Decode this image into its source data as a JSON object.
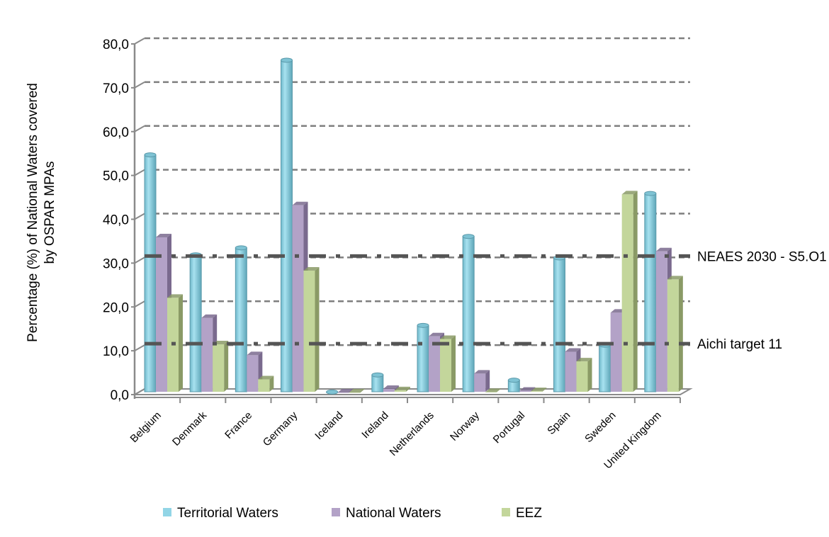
{
  "chart_data": {
    "type": "bar",
    "title": "",
    "ylabel": "Percentage (%) of National Waters covered by OSPAR MPAs",
    "ylabel_lines": [
      "Percentage (%) of National Waters covered",
      "by OSPAR MPAs"
    ],
    "xlabel": "",
    "ylim": [
      0,
      80
    ],
    "yticks": [
      "0,0",
      "10,0",
      "20,0",
      "30,0",
      "40,0",
      "50,0",
      "60,0",
      "70,0",
      "80,0"
    ],
    "grid": true,
    "legend_position": "bottom",
    "categories": [
      "Belgium",
      "Denmark",
      "France",
      "Germany",
      "Iceland",
      "Ireland",
      "Netherlands",
      "Norway",
      "Portugal",
      "Spain",
      "Sweden",
      "United Kingdom"
    ],
    "series": [
      {
        "name": "Territorial Waters",
        "color": "#92d5e6",
        "values": [
          54.2,
          31.4,
          33.0,
          75.8,
          0.1,
          4.0,
          15.3,
          35.6,
          2.8,
          30.7,
          10.8,
          45.4
        ]
      },
      {
        "name": "National Waters",
        "color": "#b3a2c7",
        "values": [
          35.4,
          17.0,
          8.5,
          42.7,
          0.0,
          0.8,
          12.8,
          4.3,
          0.4,
          9.3,
          18.2,
          32.2
        ]
      },
      {
        "name": "EEZ",
        "color": "#c3d69b",
        "values": [
          21.6,
          11.0,
          3.0,
          27.8,
          0.0,
          0.5,
          12.2,
          0.1,
          0.3,
          7.1,
          45.2,
          25.8
        ]
      }
    ],
    "reference_lines": [
      {
        "label": "NEAES 2030 - S5.O1",
        "value": 30
      },
      {
        "label": "Aichi target 11",
        "value": 10
      }
    ]
  }
}
